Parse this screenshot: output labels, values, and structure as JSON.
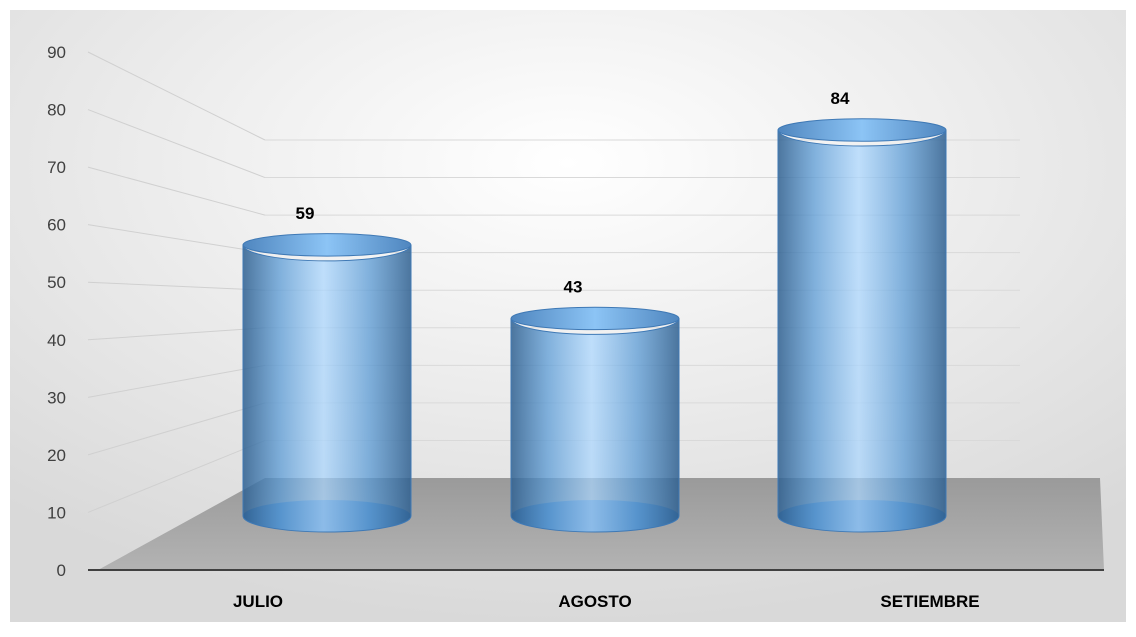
{
  "chart_data": {
    "type": "bar",
    "style": "3d-cylinder",
    "categories": [
      "JULIO",
      "AGOSTO",
      "SETIEMBRE"
    ],
    "values": [
      59,
      43,
      84
    ],
    "data_labels": [
      "59",
      "43",
      "84"
    ],
    "title": "",
    "xlabel": "",
    "ylabel": "",
    "ylim": [
      0,
      90
    ],
    "yticks": [
      "0",
      "10",
      "20",
      "30",
      "40",
      "50",
      "60",
      "70",
      "80",
      "90"
    ],
    "grid": true,
    "legend": "none",
    "colors": {
      "bar": "#5b9bd5",
      "bar_dark": "#2e5f8f",
      "floor": "#a6a6a6",
      "background": "#f2f2f2"
    }
  }
}
